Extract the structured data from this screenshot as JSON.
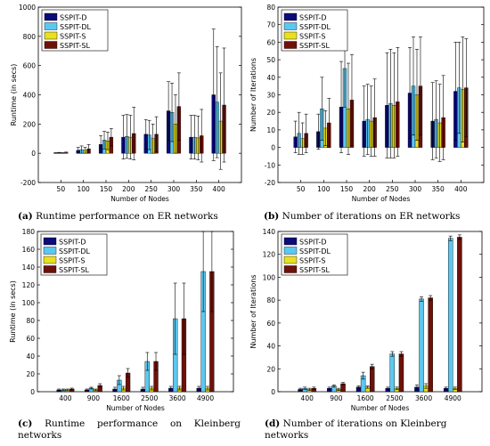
{
  "colors": {
    "SSPIT-D": "#0b0b7a",
    "SSPIT-DL": "#5cc8f0",
    "SSPIT-S": "#e8e020",
    "SSPIT-SL": "#6e1108"
  },
  "captions": [
    {
      "label": "(a)",
      "text": "Runtime performance on ER networks"
    },
    {
      "label": "(b)",
      "text": "Number of iterations on ER networks"
    },
    {
      "label": "(c)",
      "text": "Runtime performance on Kleinberg networks"
    },
    {
      "label": "(d)",
      "text": "Number of iterations on Kleinberg networks"
    }
  ],
  "chart_data": [
    {
      "type": "bar",
      "title": "",
      "xlabel": "Number of Nodes",
      "ylabel": "Runtime (in secs)",
      "ylim": [
        -200,
        1000
      ],
      "yticks": [
        -200,
        0,
        200,
        400,
        600,
        800,
        1000
      ],
      "categories": [
        "50",
        "100",
        "150",
        "200",
        "250",
        "300",
        "350",
        "400"
      ],
      "legend_position": "top-left",
      "series": [
        {
          "name": "SSPIT-D",
          "values": [
            2,
            20,
            60,
            110,
            130,
            290,
            110,
            400
          ],
          "errors": [
            2,
            20,
            60,
            150,
            100,
            200,
            150,
            450
          ]
        },
        {
          "name": "SSPIT-DL",
          "values": [
            3,
            25,
            90,
            115,
            125,
            280,
            110,
            350
          ],
          "errors": [
            3,
            25,
            60,
            150,
            100,
            200,
            150,
            380
          ]
        },
        {
          "name": "SSPIT-S",
          "values": [
            2,
            20,
            85,
            110,
            100,
            200,
            105,
            220
          ],
          "errors": [
            2,
            20,
            60,
            150,
            100,
            200,
            150,
            330
          ]
        },
        {
          "name": "SSPIT-SL",
          "values": [
            4,
            30,
            110,
            135,
            130,
            320,
            120,
            330
          ],
          "errors": [
            4,
            30,
            60,
            180,
            120,
            230,
            180,
            390
          ]
        }
      ]
    },
    {
      "type": "bar",
      "title": "",
      "xlabel": "Number of Nodes",
      "ylabel": "Number of Iterations",
      "ylim": [
        -20,
        80
      ],
      "yticks": [
        -20,
        -10,
        0,
        10,
        20,
        30,
        40,
        50,
        60,
        70,
        80
      ],
      "categories": [
        "50",
        "100",
        "150",
        "200",
        "250",
        "300",
        "350",
        "400"
      ],
      "legend_position": "top-left",
      "series": [
        {
          "name": "SSPIT-D",
          "values": [
            6,
            9,
            23,
            15,
            24,
            31,
            15,
            32
          ],
          "errors": [
            9,
            10,
            26,
            20,
            30,
            26,
            22,
            28
          ]
        },
        {
          "name": "SSPIT-DL",
          "values": [
            8,
            22,
            45,
            16,
            25,
            35,
            16,
            34
          ],
          "errors": [
            12,
            18,
            22,
            20,
            31,
            28,
            22,
            26
          ]
        },
        {
          "name": "SSPIT-S",
          "values": [
            5,
            11,
            22,
            15,
            24,
            30,
            14,
            33
          ],
          "errors": [
            9,
            10,
            26,
            20,
            30,
            26,
            22,
            30
          ]
        },
        {
          "name": "SSPIT-SL",
          "values": [
            8,
            14,
            27,
            17,
            26,
            35,
            17,
            34
          ],
          "errors": [
            11,
            14,
            26,
            22,
            31,
            28,
            24,
            28
          ]
        }
      ]
    },
    {
      "type": "bar",
      "title": "",
      "xlabel": "Number of Nodes",
      "ylabel": "Runtime (in secs)",
      "ylim": [
        0,
        180
      ],
      "yticks": [
        0,
        20,
        40,
        60,
        80,
        100,
        120,
        140,
        160,
        180
      ],
      "categories": [
        "400",
        "900",
        "1600",
        "2500",
        "3600",
        "4900"
      ],
      "legend_position": "top-left",
      "series": [
        {
          "name": "SSPIT-D",
          "values": [
            2,
            2,
            3,
            3,
            4,
            4
          ],
          "errors": [
            1,
            1,
            2,
            2,
            2,
            2
          ]
        },
        {
          "name": "SSPIT-DL",
          "values": [
            2,
            4,
            13,
            34,
            82,
            135
          ],
          "errors": [
            1,
            1,
            5,
            10,
            40,
            45
          ]
        },
        {
          "name": "SSPIT-S",
          "values": [
            2,
            2,
            4,
            4,
            4,
            4
          ],
          "errors": [
            1,
            1,
            2,
            2,
            2,
            2
          ]
        },
        {
          "name": "SSPIT-SL",
          "values": [
            3,
            7,
            21,
            34,
            82,
            135
          ],
          "errors": [
            1,
            2,
            5,
            10,
            40,
            45
          ]
        }
      ]
    },
    {
      "type": "bar",
      "title": "",
      "xlabel": "Number of Nodes",
      "ylabel": "Number of Iterations",
      "ylim": [
        0,
        140
      ],
      "yticks": [
        0,
        20,
        40,
        60,
        80,
        100,
        120,
        140
      ],
      "categories": [
        "400",
        "900",
        "1600",
        "2500",
        "3600",
        "4900"
      ],
      "legend_position": "top-left",
      "series": [
        {
          "name": "SSPIT-D",
          "values": [
            2,
            3,
            4,
            3,
            4,
            3
          ],
          "errors": [
            1,
            1,
            1,
            1,
            2,
            1
          ]
        },
        {
          "name": "SSPIT-DL",
          "values": [
            3,
            5,
            14,
            33,
            81,
            134
          ],
          "errors": [
            1,
            1,
            3,
            2,
            2,
            2
          ]
        },
        {
          "name": "SSPIT-S",
          "values": [
            2,
            2,
            4,
            3,
            5,
            3
          ],
          "errors": [
            1,
            1,
            1,
            1,
            2,
            1
          ]
        },
        {
          "name": "SSPIT-SL",
          "values": [
            3,
            7,
            22,
            33,
            82,
            135
          ],
          "errors": [
            1,
            1,
            2,
            2,
            2,
            2
          ]
        }
      ]
    }
  ]
}
